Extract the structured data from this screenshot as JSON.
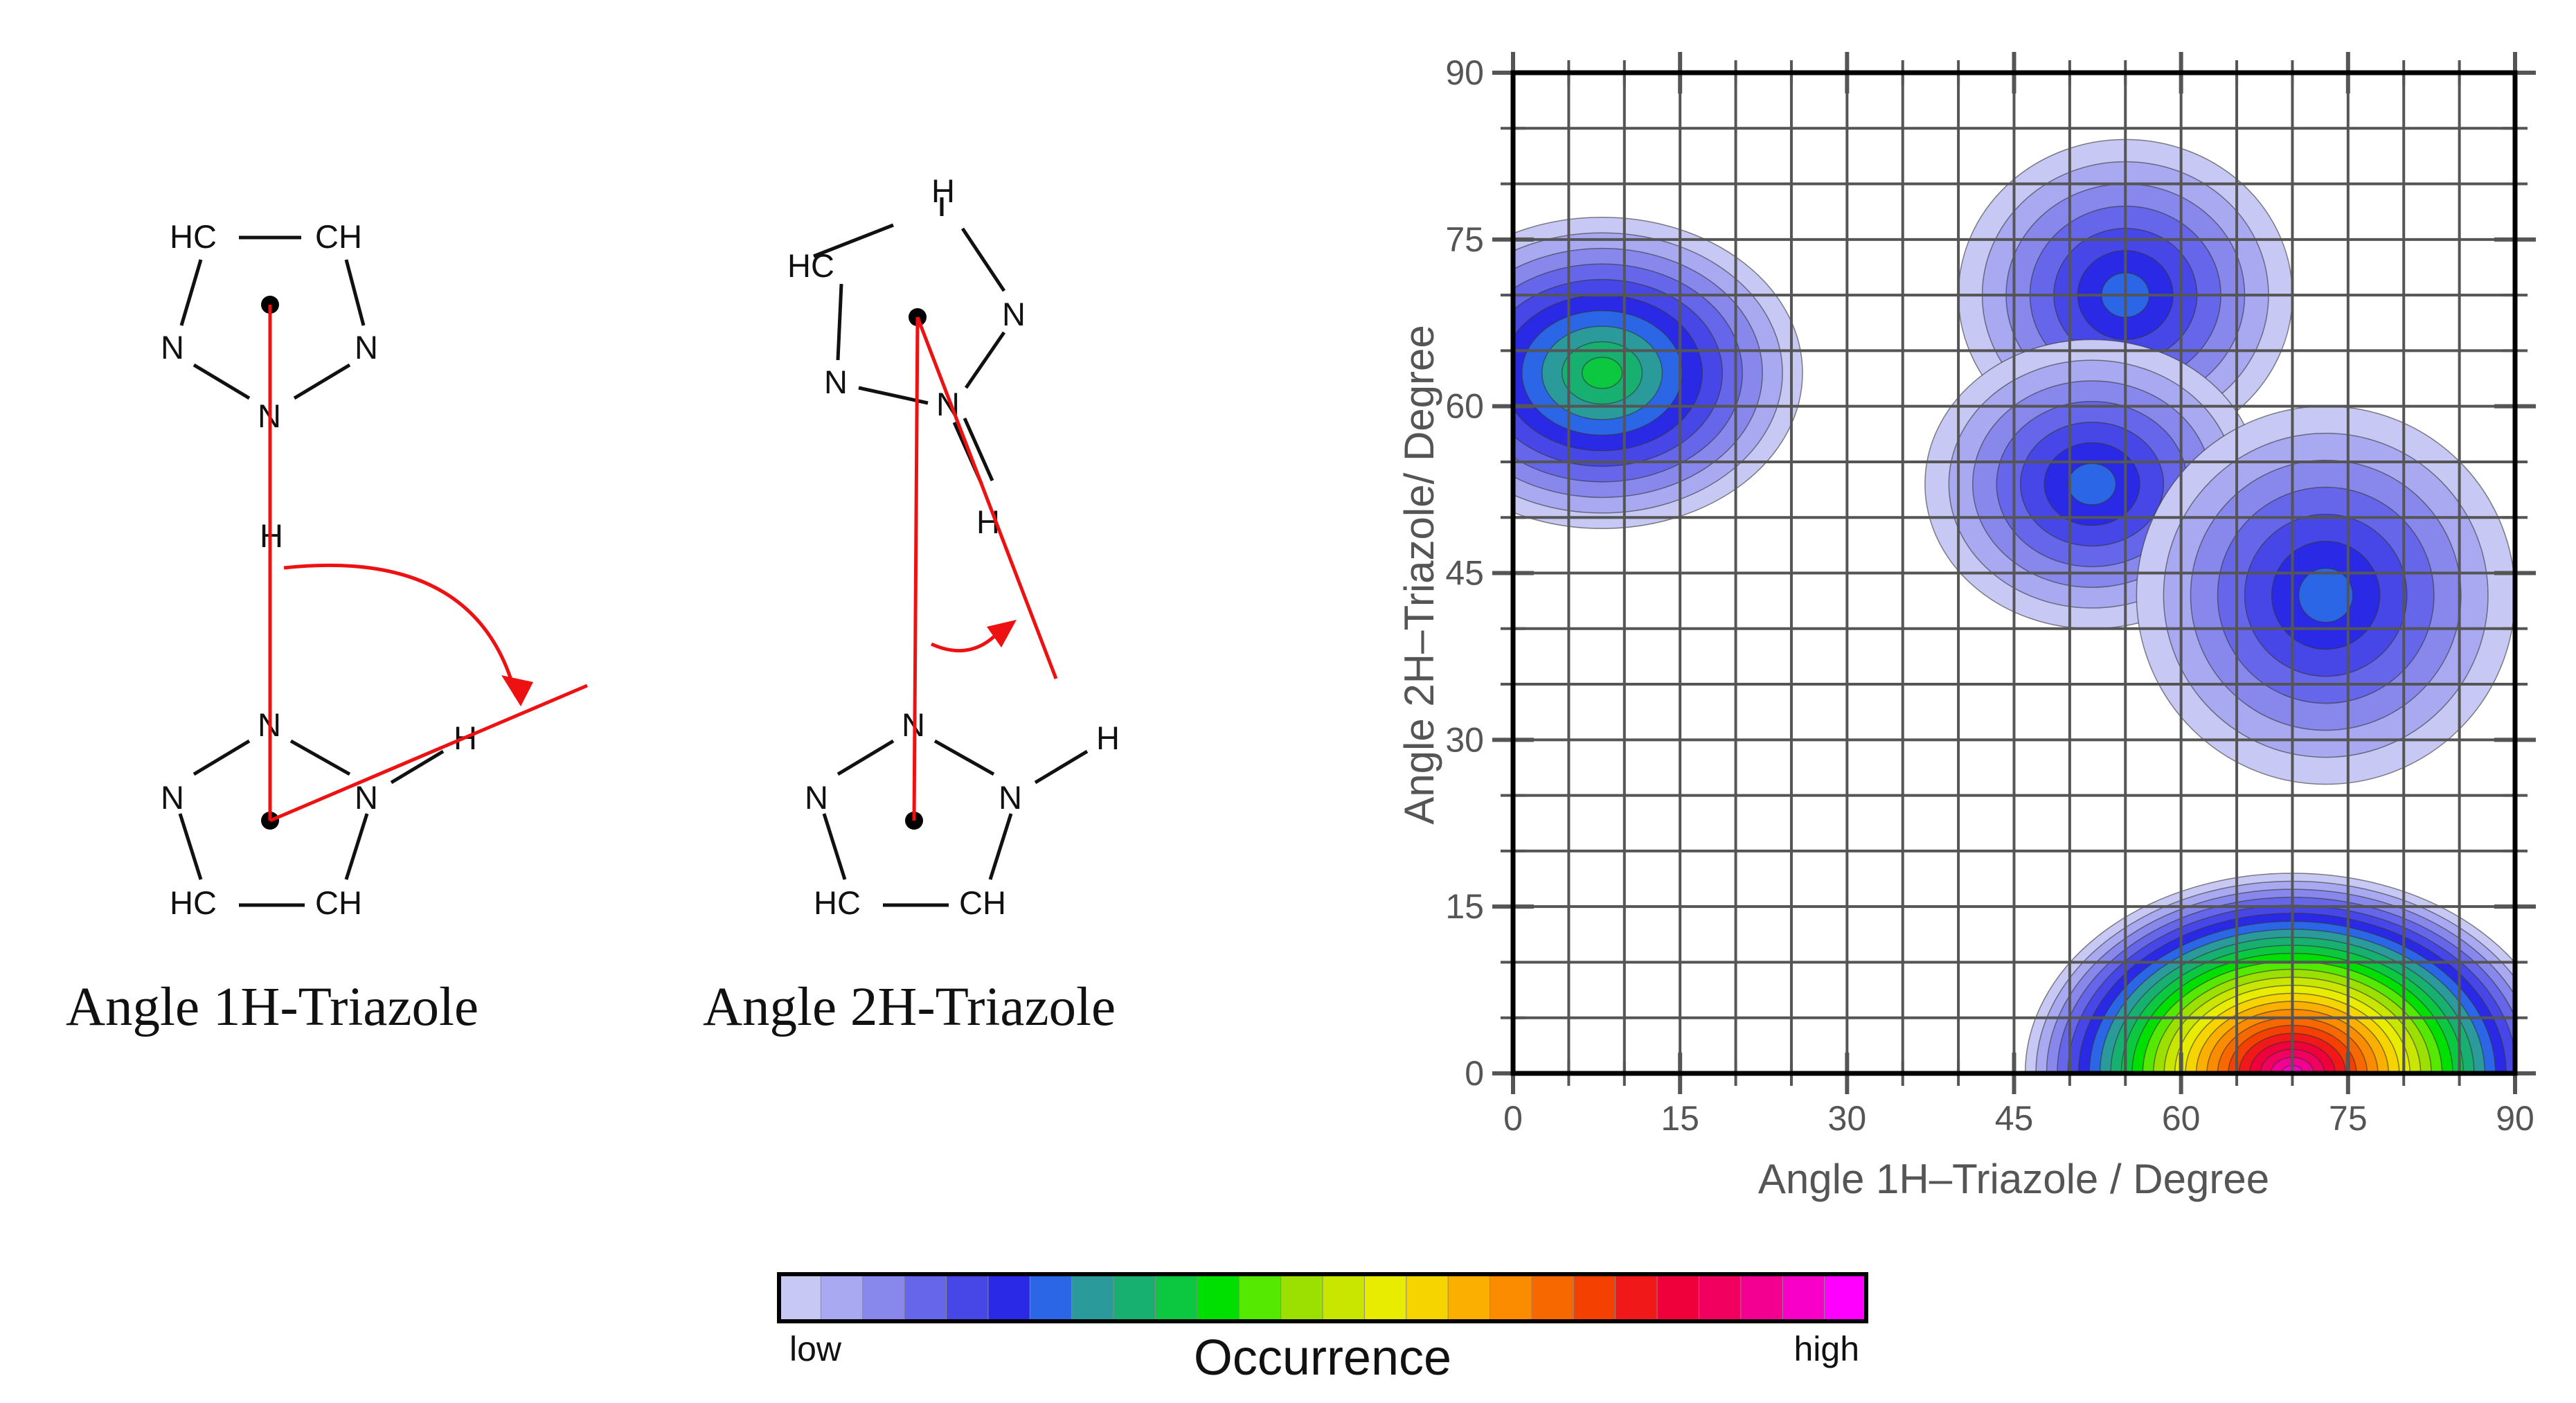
{
  "molecule_1h": {
    "title": "Angle 1H-Triazole",
    "atoms_top": [
      "HC",
      "CH",
      "N",
      "N",
      "N"
    ],
    "bridge_h": "H",
    "atoms_bottom": [
      "N",
      "N",
      "N",
      "H",
      "HC",
      "CH"
    ]
  },
  "molecule_2h": {
    "title": "Angle 2H-Triazole",
    "atoms_top": [
      "H",
      "HC",
      "N",
      "N",
      "N",
      "H"
    ],
    "atoms_bottom": [
      "N",
      "N",
      "N",
      "H",
      "HC",
      "CH"
    ]
  },
  "colorbar": {
    "title": "Occurrence",
    "low_label": "low",
    "high_label": "high",
    "colors": [
      "#c8c8f4",
      "#a9a9f1",
      "#8787ec",
      "#6666ea",
      "#4747e8",
      "#2a2ae6",
      "#2a66e6",
      "#2a9a9a",
      "#18b070",
      "#0cc840",
      "#00e000",
      "#55e800",
      "#9be000",
      "#c8e600",
      "#e8ec00",
      "#f6d400",
      "#fbaf00",
      "#fb8c00",
      "#f86800",
      "#f44000",
      "#f01818",
      "#f0003a",
      "#f20060",
      "#f40090",
      "#f800c8",
      "#ff00ff"
    ]
  },
  "chart_data": {
    "type": "heatmap",
    "subtype": "filled-contour",
    "xlabel": "Angle 1H–Triazole / Degree",
    "ylabel": "Angle 2H–Triazole/ Degree",
    "xlim": [
      0,
      90
    ],
    "ylim": [
      0,
      90
    ],
    "x_ticks": [
      "0",
      "15",
      "30",
      "45",
      "60",
      "75",
      "90"
    ],
    "y_ticks": [
      "0",
      "15",
      "30",
      "45",
      "60",
      "75",
      "90"
    ],
    "x_tick_values": [
      0,
      15,
      30,
      45,
      60,
      75,
      90
    ],
    "y_tick_values": [
      0,
      15,
      30,
      45,
      60,
      75,
      90
    ],
    "grid_step": 5,
    "grid": true,
    "peaks": [
      {
        "x": 70,
        "y": 0,
        "rx": 24,
        "ry": 18,
        "peak": 1.0,
        "color_levels": 25
      },
      {
        "x": 8,
        "y": 63,
        "rx": 18,
        "ry": 14,
        "peak": 0.3,
        "color_levels": 10
      },
      {
        "x": 55,
        "y": 70,
        "rx": 15,
        "ry": 14,
        "peak": 0.25,
        "color_levels": 7
      },
      {
        "x": 52,
        "y": 53,
        "rx": 15,
        "ry": 13,
        "peak": 0.25,
        "color_levels": 7
      },
      {
        "x": 73,
        "y": 43,
        "rx": 17,
        "ry": 17,
        "peak": 0.25,
        "color_levels": 7
      }
    ]
  }
}
